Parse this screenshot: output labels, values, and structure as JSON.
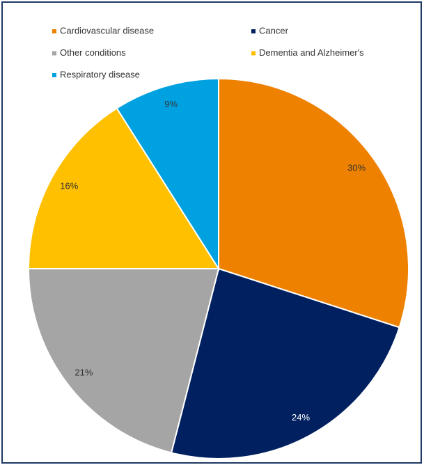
{
  "chart_data": {
    "type": "pie",
    "categories": [
      "Cardiovascular disease",
      "Cancer",
      "Other conditions",
      "Dementia and Alzheimer's",
      "Respiratory disease"
    ],
    "values": [
      30,
      24,
      21,
      16,
      9
    ],
    "value_labels": [
      "30%",
      "24%",
      "21%",
      "16%",
      "9%"
    ],
    "colors": [
      "#ee8100",
      "#002060",
      "#a5a5a5",
      "#ffc000",
      "#00a1e0"
    ],
    "legend": "top"
  }
}
